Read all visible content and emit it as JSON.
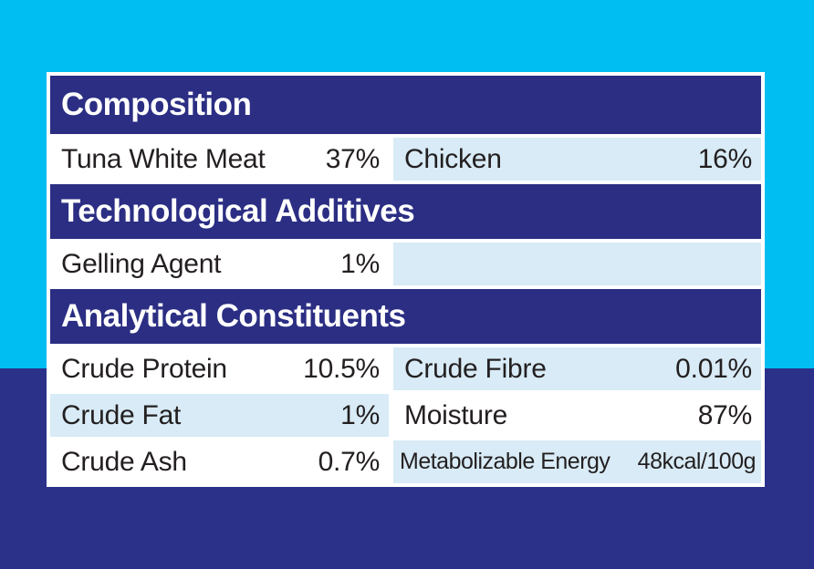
{
  "colors": {
    "cyan_bg": "#00BEF2",
    "navy_bg": "#2B3189",
    "header_navy": "#2B2E83",
    "cell_blue": "#D8EBF6",
    "cell_white": "#FFFFFF",
    "border_white": "#FFFFFF",
    "text_dark": "#231F20"
  },
  "label": {
    "sections": [
      {
        "header": "Composition",
        "rows": [
          {
            "left": {
              "name": "Tuna White Meat",
              "value": "37%"
            },
            "right": {
              "name": "Chicken",
              "value": "16%"
            }
          }
        ]
      },
      {
        "header": "Technological Additives",
        "rows": [
          {
            "left": {
              "name": "Gelling Agent",
              "value": "1%"
            },
            "right": {
              "name": "",
              "value": ""
            }
          }
        ]
      },
      {
        "header": "Analytical Constituents",
        "rows": [
          {
            "left": {
              "name": "Crude Protein",
              "value": "10.5%"
            },
            "right": {
              "name": "Crude Fibre",
              "value": "0.01%"
            }
          },
          {
            "left": {
              "name": "Crude Fat",
              "value": "1%"
            },
            "right": {
              "name": "Moisture",
              "value": "87%"
            }
          },
          {
            "left": {
              "name": "Crude Ash",
              "value": "0.7%"
            },
            "right": {
              "name": "Metabolizable Energy",
              "value": "48kcal/100g"
            }
          }
        ]
      }
    ]
  }
}
